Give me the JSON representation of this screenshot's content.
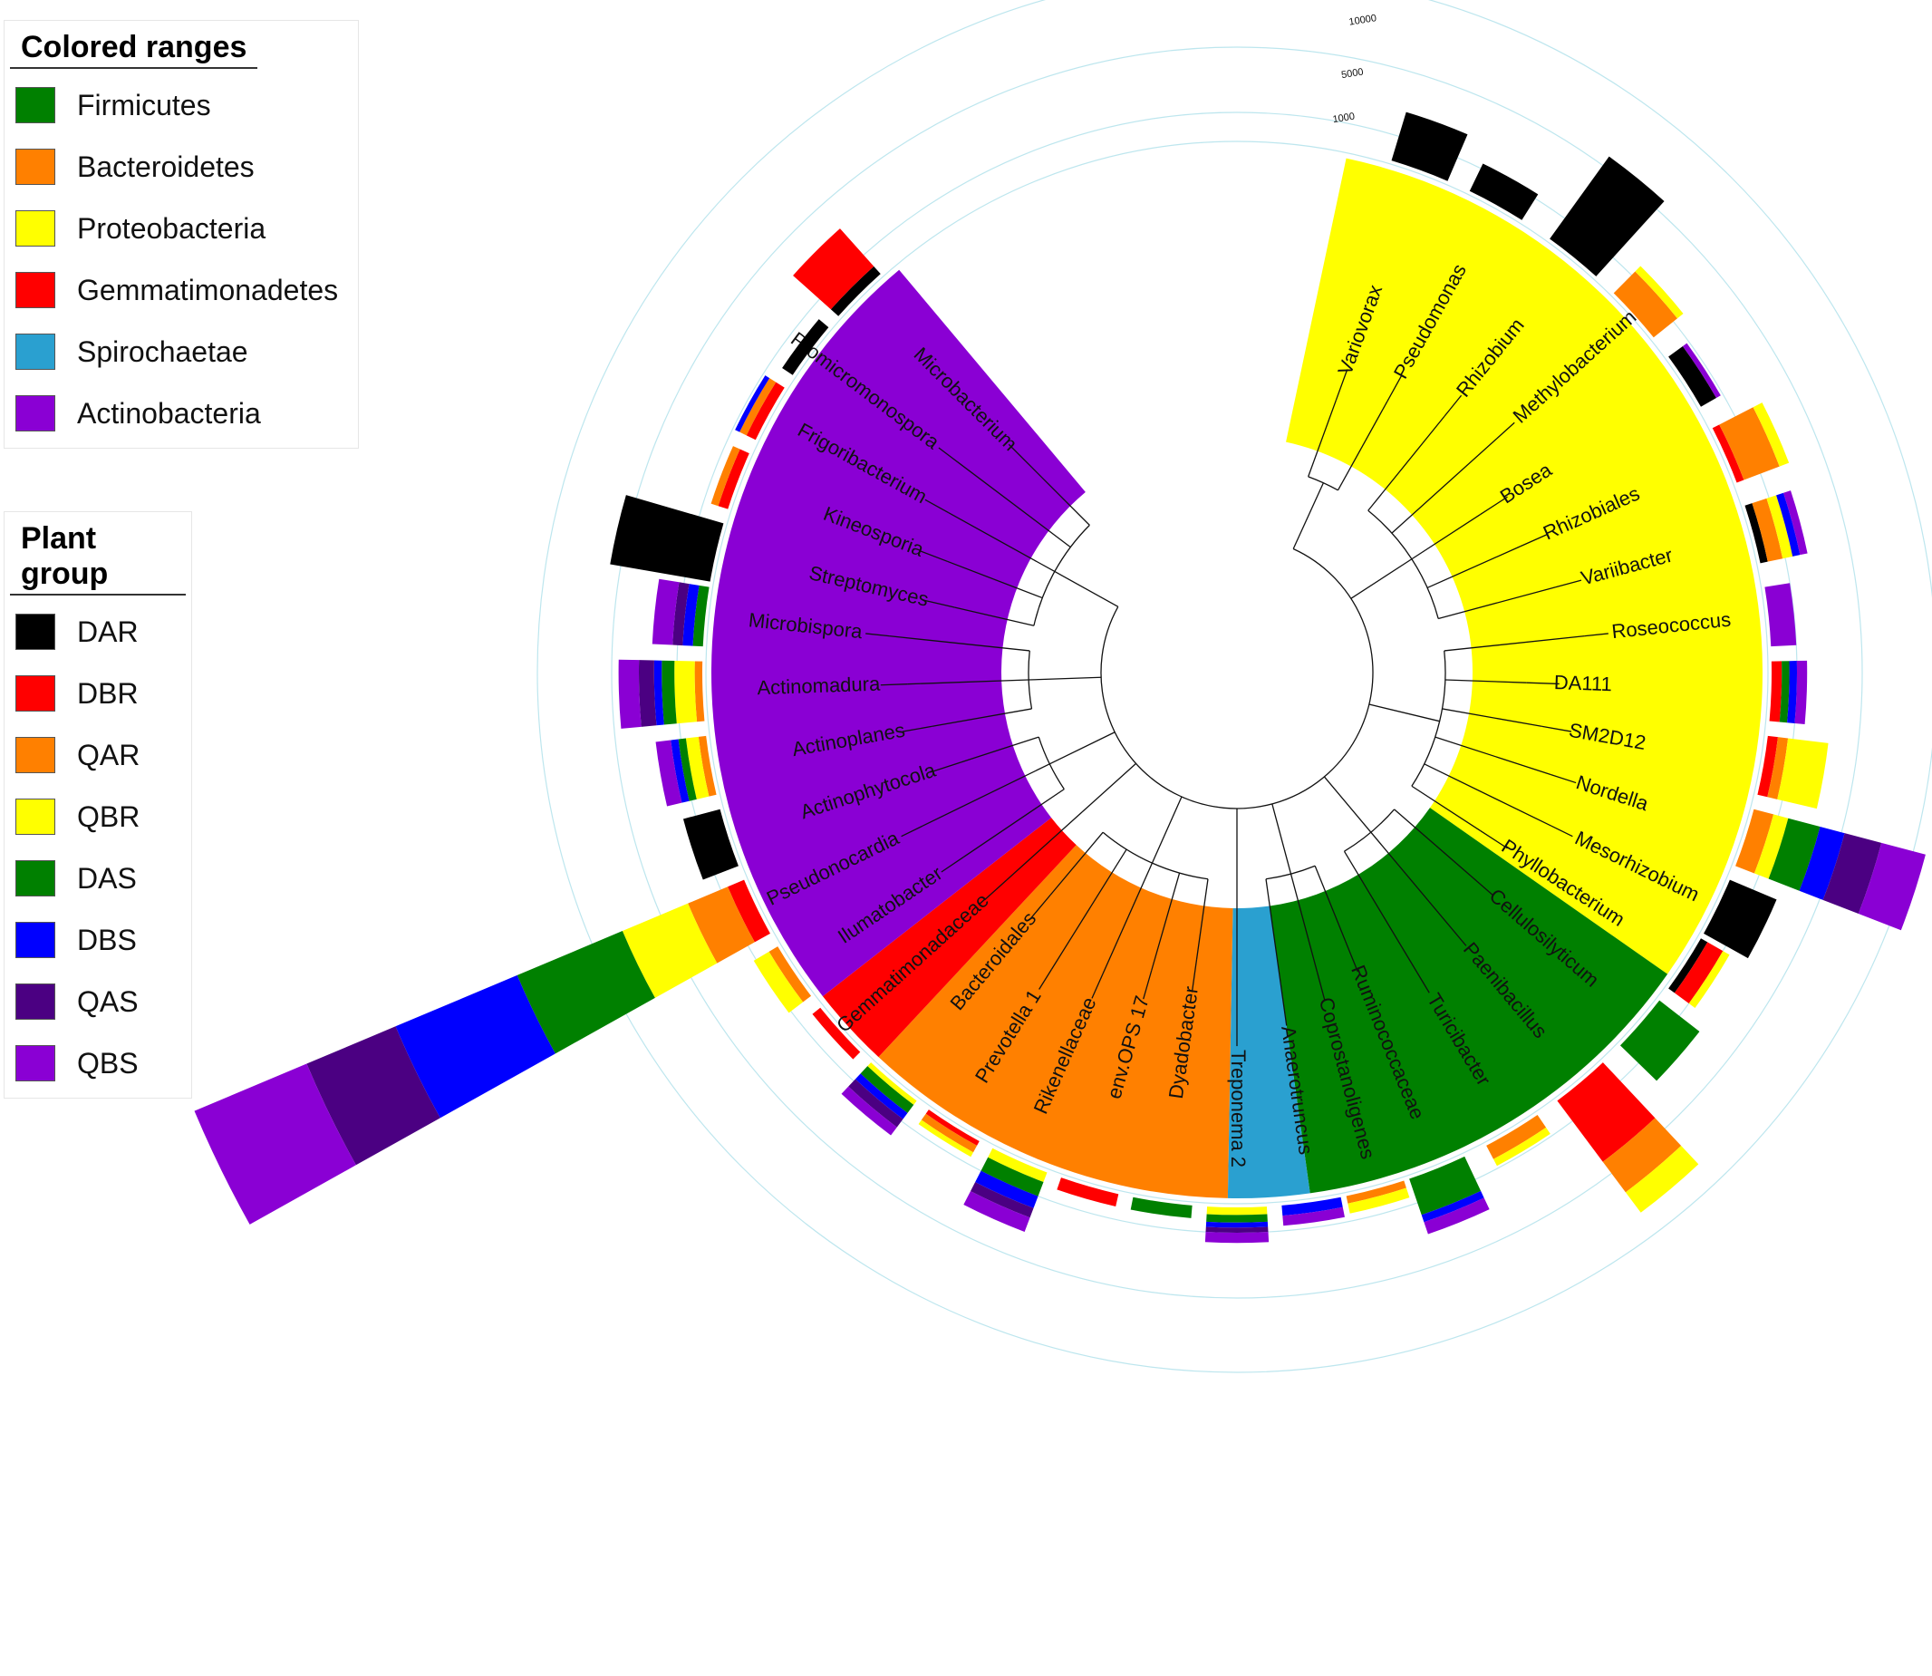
{
  "legends": {
    "ranges": {
      "title": "Colored ranges",
      "items": [
        {
          "label": "Firmicutes",
          "color": "#008000"
        },
        {
          "label": "Bacteroidetes",
          "color": "#ff8000"
        },
        {
          "label": "Proteobacteria",
          "color": "#ffff00"
        },
        {
          "label": "Gemmatimonadetes",
          "color": "#ff0000"
        },
        {
          "label": "Spirochaetae",
          "color": "#2aa0d0"
        },
        {
          "label": "Actinobacteria",
          "color": "#8a00d4"
        }
      ]
    },
    "plant_group": {
      "title": "Plant group",
      "items": [
        {
          "label": "DAR",
          "color": "#000000"
        },
        {
          "label": "DBR",
          "color": "#ff0000"
        },
        {
          "label": "QAR",
          "color": "#ff8000"
        },
        {
          "label": "QBR",
          "color": "#ffff00"
        },
        {
          "label": "DAS",
          "color": "#008000"
        },
        {
          "label": "DBS",
          "color": "#0000ff"
        },
        {
          "label": "QAS",
          "color": "#4b0082"
        },
        {
          "label": "QBS",
          "color": "#8a00d4"
        }
      ]
    }
  },
  "scale_labels": [
    "1000",
    "5000",
    "10000"
  ],
  "tree": {
    "phyla": [
      {
        "name": "Proteobacteria",
        "color": "#ffff00",
        "start": 282,
        "end": 395
      },
      {
        "name": "Firmicutes",
        "color": "#008000",
        "start": 395,
        "end": 442
      },
      {
        "name": "Spirochaetae",
        "color": "#2aa0d0",
        "start": 442,
        "end": 451
      },
      {
        "name": "Bacteroidetes",
        "color": "#ff8000",
        "start": 451,
        "end": 493
      },
      {
        "name": "Gemmatimonadetes",
        "color": "#ff0000",
        "start": 493,
        "end": 502
      },
      {
        "name": "Actinobacteria",
        "color": "#8a00d4",
        "start": 502,
        "end": 590
      }
    ],
    "leaves": [
      {
        "name": "Variovorax",
        "angle": 290,
        "stacks": [
          {
            "g": "DAR",
            "v": 2.0
          }
        ]
      },
      {
        "name": "Pseudomonas",
        "angle": 299,
        "stacks": [
          {
            "g": "DAR",
            "v": 1.2
          }
        ]
      },
      {
        "name": "Rhizobium",
        "angle": 309,
        "stacks": [
          {
            "g": "DAR",
            "v": 4.0
          }
        ]
      },
      {
        "name": "Methylobacterium",
        "angle": 318,
        "stacks": [
          {
            "g": "QAR",
            "v": 1.2
          },
          {
            "g": "QBR",
            "v": 0.3
          }
        ]
      },
      {
        "name": "Bosea",
        "angle": 327,
        "stacks": [
          {
            "g": "DAR",
            "v": 0.7
          },
          {
            "g": "QBS",
            "v": 0.2
          }
        ]
      },
      {
        "name": "Rhizobiales",
        "angle": 336,
        "stacks": [
          {
            "g": "DBR",
            "v": 0.3
          },
          {
            "g": "QAR",
            "v": 1.5
          },
          {
            "g": "QBR",
            "v": 0.4
          }
        ]
      },
      {
        "name": "Variibacter",
        "angle": 345,
        "stacks": [
          {
            "g": "DAR",
            "v": 0.3
          },
          {
            "g": "QAR",
            "v": 0.6
          },
          {
            "g": "QBR",
            "v": 0.4
          },
          {
            "g": "DBS",
            "v": 0.3
          },
          {
            "g": "QBS",
            "v": 0.3
          }
        ]
      },
      {
        "name": "Roseococcus",
        "angle": 354,
        "stacks": [
          {
            "g": "QBS",
            "v": 1.0
          }
        ]
      },
      {
        "name": "DA111",
        "angle": 362,
        "stacks": [
          {
            "g": "DBR",
            "v": 0.4
          },
          {
            "g": "DAS",
            "v": 0.3
          },
          {
            "g": "DBS",
            "v": 0.3
          },
          {
            "g": "QBS",
            "v": 0.4
          }
        ]
      },
      {
        "name": "SM2D12",
        "angle": 370,
        "stacks": [
          {
            "g": "DBR",
            "v": 0.4
          },
          {
            "g": "QAR",
            "v": 0.4
          },
          {
            "g": "QBR",
            "v": 1.6
          }
        ]
      },
      {
        "name": "Nordella",
        "angle": 378,
        "stacks": [
          {
            "g": "QAR",
            "v": 0.8
          },
          {
            "g": "QBR",
            "v": 0.6
          },
          {
            "g": "DAS",
            "v": 1.3
          },
          {
            "g": "DBS",
            "v": 1.0
          },
          {
            "g": "QAS",
            "v": 1.5
          },
          {
            "g": "QBS",
            "v": 1.8
          }
        ]
      },
      {
        "name": "Mesorhizobium",
        "angle": 386,
        "stacks": [
          {
            "g": "DAR",
            "v": 2.0
          }
        ]
      },
      {
        "name": "Phyllobacterium",
        "angle": 393,
        "stacks": [
          {
            "g": "DAR",
            "v": 0.3
          },
          {
            "g": "DBR",
            "v": 0.7
          },
          {
            "g": "QBR",
            "v": 0.3
          }
        ]
      },
      {
        "name": "Cellulosilyticum",
        "angle": 401,
        "stacks": [
          {
            "g": "DAS",
            "v": 2.0
          }
        ]
      },
      {
        "name": "Paenibacillus",
        "angle": 410,
        "stacks": [
          {
            "g": "DBR",
            "v": 3.0
          },
          {
            "g": "QAR",
            "v": 1.5
          },
          {
            "g": "QBR",
            "v": 1.0
          }
        ]
      },
      {
        "name": "Turicibacter",
        "angle": 419,
        "stacks": [
          {
            "g": "QAR",
            "v": 0.6
          },
          {
            "g": "QBR",
            "v": 0.3
          }
        ]
      },
      {
        "name": "Ruminococcaceae",
        "angle": 428,
        "stacks": [
          {
            "g": "DAS",
            "v": 1.5
          },
          {
            "g": "DBS",
            "v": 0.3
          },
          {
            "g": "QBS",
            "v": 0.5
          }
        ]
      },
      {
        "name": "Coprostanoligenes",
        "angle": 435,
        "stacks": [
          {
            "g": "QAR",
            "v": 0.3
          },
          {
            "g": "QBR",
            "v": 0.4
          }
        ]
      },
      {
        "name": "Anaerotruncus",
        "angle": 442,
        "stacks": [
          {
            "g": "DBS",
            "v": 0.4
          },
          {
            "g": "QBS",
            "v": 0.4
          }
        ]
      },
      {
        "name": "Treponema 2",
        "angle": 450,
        "stacks": [
          {
            "g": "QBR",
            "v": 0.3
          },
          {
            "g": "DAS",
            "v": 0.3
          },
          {
            "g": "DBS",
            "v": 0.2
          },
          {
            "g": "QAS",
            "v": 0.2
          },
          {
            "g": "QBS",
            "v": 0.4
          }
        ]
      },
      {
        "name": "Dyadobacter",
        "angle": 458,
        "stacks": [
          {
            "g": "DAS",
            "v": 0.5
          }
        ]
      },
      {
        "name": "env.OPS 17",
        "angle": 466,
        "stacks": [
          {
            "g": "DBR",
            "v": 0.5
          }
        ]
      },
      {
        "name": "Rikenellaceae",
        "angle": 474,
        "stacks": [
          {
            "g": "QBR",
            "v": 0.4
          },
          {
            "g": "DAS",
            "v": 0.6
          },
          {
            "g": "DBS",
            "v": 0.5
          },
          {
            "g": "QAS",
            "v": 0.4
          },
          {
            "g": "QBS",
            "v": 0.6
          }
        ]
      },
      {
        "name": "Prevotella 1",
        "angle": 482,
        "stacks": [
          {
            "g": "DBR",
            "v": 0.2
          },
          {
            "g": "QAR",
            "v": 0.3
          },
          {
            "g": "QBR",
            "v": 0.2
          }
        ]
      },
      {
        "name": "Bacteroidales",
        "angle": 490,
        "stacks": [
          {
            "g": "QBR",
            "v": 0.2
          },
          {
            "g": "DAS",
            "v": 0.4
          },
          {
            "g": "DBS",
            "v": 0.3
          },
          {
            "g": "QAS",
            "v": 0.4
          },
          {
            "g": "QBS",
            "v": 0.4
          }
        ]
      },
      {
        "name": "Gemmatimonadaceae",
        "angle": 498,
        "stacks": [
          {
            "g": "DBR",
            "v": 0.4
          }
        ]
      },
      {
        "name": "Ilumatobacter",
        "angle": 506,
        "stacks": [
          {
            "g": "QAR",
            "v": 0.4
          },
          {
            "g": "QBR",
            "v": 0.7
          }
        ]
      },
      {
        "name": "Pseudonocardia",
        "angle": 514,
        "stacks": [
          {
            "g": "DBR",
            "v": 0.7
          },
          {
            "g": "QAR",
            "v": 1.7
          },
          {
            "g": "QBR",
            "v": 2.8
          },
          {
            "g": "DAS",
            "v": 4.5
          },
          {
            "g": "DBS",
            "v": 5.2
          },
          {
            "g": "QAS",
            "v": 3.8
          },
          {
            "g": "QBS",
            "v": 4.8
          }
        ]
      },
      {
        "name": "Actinophytocola",
        "angle": 522,
        "stacks": [
          {
            "g": "DAR",
            "v": 1.5
          }
        ]
      },
      {
        "name": "Actinoplanes",
        "angle": 530,
        "stacks": [
          {
            "g": "QAR",
            "v": 0.3
          },
          {
            "g": "QBR",
            "v": 0.5
          },
          {
            "g": "DAS",
            "v": 0.3
          },
          {
            "g": "DBS",
            "v": 0.3
          },
          {
            "g": "QBS",
            "v": 0.6
          }
        ]
      },
      {
        "name": "Actinomadura",
        "angle": 538,
        "stacks": [
          {
            "g": "QAR",
            "v": 0.3
          },
          {
            "g": "QBR",
            "v": 0.8
          },
          {
            "g": "DAS",
            "v": 0.5
          },
          {
            "g": "DBS",
            "v": 0.3
          },
          {
            "g": "QAS",
            "v": 0.6
          },
          {
            "g": "QBS",
            "v": 0.8
          }
        ]
      },
      {
        "name": "Microbispora",
        "angle": 546,
        "stacks": [
          {
            "g": "DAS",
            "v": 0.4
          },
          {
            "g": "DBS",
            "v": 0.4
          },
          {
            "g": "QAS",
            "v": 0.4
          },
          {
            "g": "QBS",
            "v": 0.8
          }
        ]
      },
      {
        "name": "Streptomyces",
        "angle": 553,
        "stacks": [
          {
            "g": "DAR",
            "v": 4.0
          }
        ]
      },
      {
        "name": "Kineosporia",
        "angle": 561,
        "stacks": [
          {
            "g": "DBR",
            "v": 0.4
          },
          {
            "g": "QAR",
            "v": 0.3
          }
        ]
      },
      {
        "name": "Frigoribacterium",
        "angle": 569,
        "stacks": [
          {
            "g": "DBR",
            "v": 0.4
          },
          {
            "g": "QAR",
            "v": 0.3
          },
          {
            "g": "DBS",
            "v": 0.2
          }
        ]
      },
      {
        "name": "Promicromonospora",
        "angle": 577,
        "stacks": [
          {
            "g": "DAR",
            "v": 0.5
          }
        ]
      },
      {
        "name": "Microbacterium",
        "angle": 585,
        "stacks": [
          {
            "g": "DAR",
            "v": 0.4
          },
          {
            "g": "DBR",
            "v": 2.0
          }
        ]
      }
    ]
  }
}
